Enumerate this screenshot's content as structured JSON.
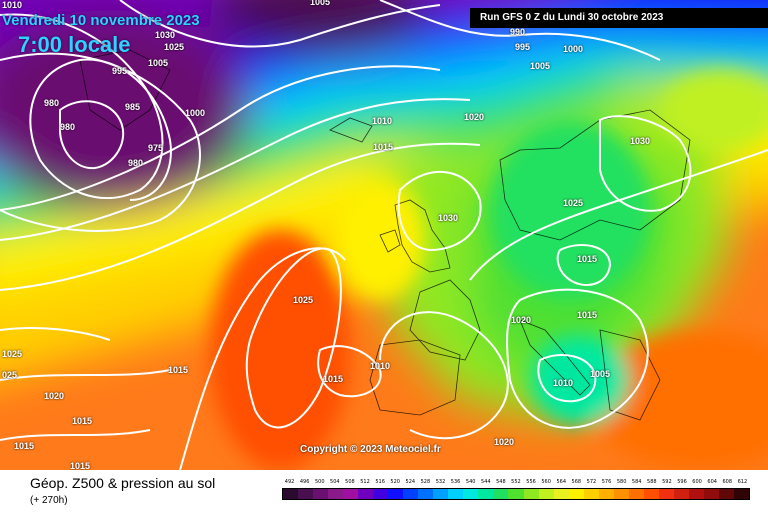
{
  "header": {
    "date": "Vendredi 10 novembre 2023",
    "time": "7:00 locale",
    "run": "Run GFS 0 Z du Lundi 30 octobre 2023"
  },
  "copyright": "Copyright © 2023 Meteociel.fr",
  "footer": {
    "title": "Géop. Z500 & pression au sol",
    "subtitle": "(+ 270h)"
  },
  "legend": {
    "values": [
      "492",
      "496",
      "500",
      "504",
      "508",
      "512",
      "516",
      "520",
      "524",
      "528",
      "532",
      "536",
      "540",
      "544",
      "548",
      "552",
      "556",
      "560",
      "564",
      "568",
      "572",
      "576",
      "580",
      "584",
      "588",
      "592",
      "596",
      "600",
      "604",
      "608",
      "612"
    ],
    "colors": [
      "#2a0a2e",
      "#4a0f50",
      "#6a1070",
      "#8a1a8a",
      "#a010a0",
      "#7000c0",
      "#4000e0",
      "#1010ff",
      "#0040ff",
      "#0070ff",
      "#00a0ff",
      "#00d0ff",
      "#00e8e0",
      "#00e8a0",
      "#20e060",
      "#50e030",
      "#90e820",
      "#c0f020",
      "#e8f020",
      "#fff000",
      "#ffd000",
      "#ffb000",
      "#ff9000",
      "#ff7000",
      "#ff5000",
      "#f03010",
      "#d02010",
      "#b01010",
      "#900c0c",
      "#600808",
      "#300404"
    ]
  },
  "isobars": [
    {
      "text": "1010",
      "group": "nw"
    },
    {
      "text": "1005",
      "group": "top"
    },
    {
      "text": "1030",
      "group": "nw"
    },
    {
      "text": "1025",
      "group": "nw"
    },
    {
      "text": "1005",
      "group": "nw"
    },
    {
      "text": "995",
      "group": "nw"
    },
    {
      "text": "990",
      "group": "run"
    },
    {
      "text": "995",
      "group": "run"
    },
    {
      "text": "1000",
      "group": "run"
    },
    {
      "text": "1005",
      "group": "run"
    },
    {
      "text": "980",
      "group": "low"
    },
    {
      "text": "980",
      "group": "low"
    },
    {
      "text": "985",
      "group": "low"
    },
    {
      "text": "1000",
      "group": "low"
    },
    {
      "text": "975",
      "group": "low"
    },
    {
      "text": "980",
      "group": "low"
    },
    {
      "text": "1010",
      "group": "mid"
    },
    {
      "text": "1020",
      "group": "mid"
    },
    {
      "text": "1015",
      "group": "mid"
    },
    {
      "text": "1030",
      "group": "east"
    },
    {
      "text": "1030",
      "group": "uk"
    },
    {
      "text": "1025",
      "group": "east"
    },
    {
      "text": "1015",
      "group": "east"
    },
    {
      "text": "1025",
      "group": "atl"
    },
    {
      "text": "1020",
      "group": "east"
    },
    {
      "text": "1015",
      "group": "east"
    },
    {
      "text": "1025",
      "group": "w"
    },
    {
      "text": "025",
      "group": "w"
    },
    {
      "text": "1015",
      "group": "atl"
    },
    {
      "text": "1015",
      "group": "atl"
    },
    {
      "text": "1010",
      "group": "atl"
    },
    {
      "text": "1010",
      "group": "east"
    },
    {
      "text": "1005",
      "group": "east"
    },
    {
      "text": "1020",
      "group": "w"
    },
    {
      "text": "1015",
      "group": "w"
    },
    {
      "text": "1015",
      "group": "w"
    },
    {
      "text": "1015",
      "group": "w"
    },
    {
      "text": "1020",
      "group": "south"
    }
  ]
}
